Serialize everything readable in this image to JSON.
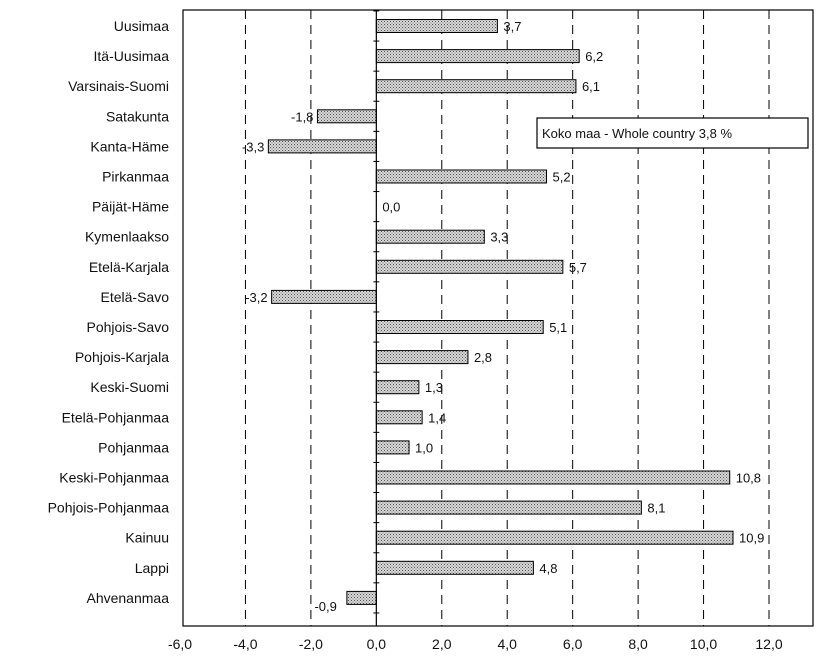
{
  "chart_data": {
    "type": "bar",
    "orientation": "horizontal",
    "categories": [
      "Uusimaa",
      "Itä-Uusimaa",
      "Varsinais-Suomi",
      "Satakunta",
      "Kanta-Häme",
      "Pirkanmaa",
      "Päijät-Häme",
      "Kymenlaakso",
      "Etelä-Karjala",
      "Etelä-Savo",
      "Pohjois-Savo",
      "Pohjois-Karjala",
      "Keski-Suomi",
      "Etelä-Pohjanmaa",
      "Pohjanmaa",
      "Keski-Pohjanmaa",
      "Pohjois-Pohjanmaa",
      "Kainuu",
      "Lappi",
      "Ahvenanmaa"
    ],
    "values": [
      3.7,
      6.2,
      6.1,
      -1.8,
      -3.3,
      5.2,
      0.0,
      3.3,
      5.7,
      -3.2,
      5.1,
      2.8,
      1.3,
      1.4,
      1.0,
      10.8,
      8.1,
      10.9,
      4.8,
      -0.9
    ],
    "value_labels": [
      "3,7",
      "6,2",
      "6,1",
      "-1,8",
      "-3,3",
      "5,2",
      "0,0",
      "3,3",
      "5,7",
      "-3,2",
      "5,1",
      "2,8",
      "1,3",
      "1,4",
      "1,0",
      "10,8",
      "8,1",
      "10,9",
      "4,8",
      "-0,9"
    ],
    "xlim": [
      -6,
      12
    ],
    "xticks": [
      "-6,0",
      "-4,0",
      "-2,0",
      "0,0",
      "2,0",
      "4,0",
      "6,0",
      "8,0",
      "10,0",
      "12,0"
    ],
    "xtick_values": [
      -6,
      -4,
      -2,
      0,
      2,
      4,
      6,
      8,
      10,
      12
    ],
    "grid": "vertical dashed",
    "annotation": "Koko maa - Whole country 3,8 %",
    "bar_color": "#bdbdbd"
  }
}
